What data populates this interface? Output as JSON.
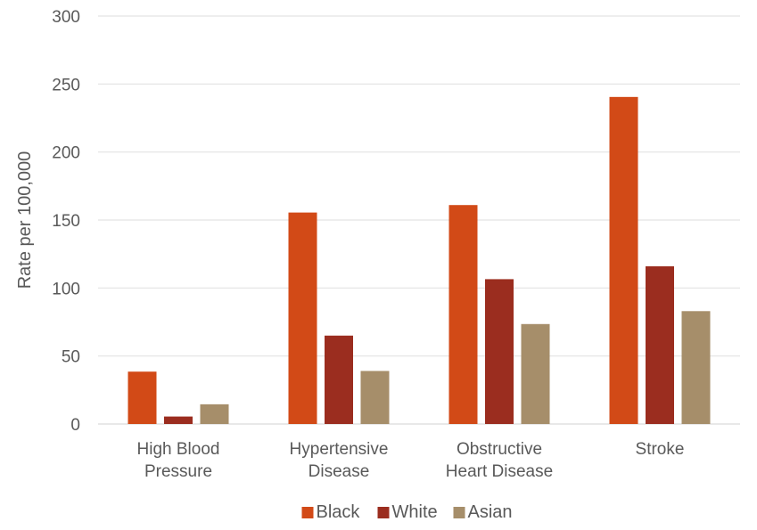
{
  "chart_data": {
    "type": "bar",
    "title": "",
    "xlabel": "",
    "ylabel": "Rate per 100,000",
    "ylim": [
      0,
      300
    ],
    "yticks": [
      0,
      50,
      100,
      150,
      200,
      250,
      300
    ],
    "grid": true,
    "legend_position": "bottom",
    "categories": [
      [
        "High Blood",
        "Pressure"
      ],
      [
        "Hypertensive",
        "Disease"
      ],
      [
        "Obstructive",
        "Heart Disease"
      ],
      [
        "Stroke"
      ]
    ],
    "series": [
      {
        "name": "Black",
        "color": "#d24a17",
        "values": [
          38.5,
          155.5,
          161,
          240.5
        ]
      },
      {
        "name": "White",
        "color": "#9b2d1f",
        "values": [
          5.5,
          65,
          106.5,
          116
        ]
      },
      {
        "name": "Asian",
        "color": "#a68e6a",
        "values": [
          14.5,
          39,
          73.5,
          83
        ]
      }
    ]
  }
}
